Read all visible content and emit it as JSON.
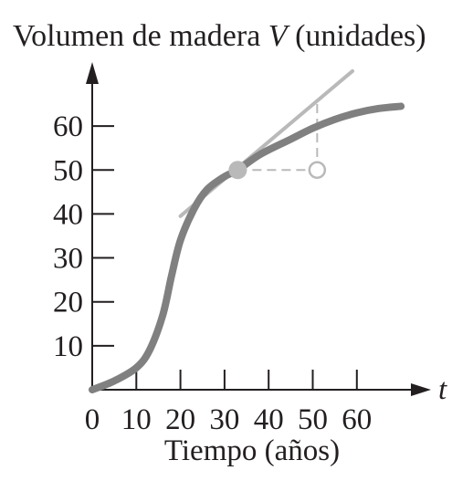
{
  "chart_data": {
    "type": "line",
    "title_parts": {
      "pre": "Volumen de madera ",
      "var": "V",
      "post": " (unidades)"
    },
    "xlabel": "Tiempo (años)",
    "x_axis_var": "t",
    "xlim": [
      0,
      75
    ],
    "ylim": [
      0,
      70
    ],
    "x_ticks": [
      0,
      10,
      20,
      30,
      40,
      50,
      60
    ],
    "y_ticks": [
      10,
      20,
      30,
      40,
      50,
      60
    ],
    "series": [
      {
        "x": [
          0,
          5,
          10,
          13,
          16,
          18,
          20,
          23,
          26,
          30,
          33,
          38,
          45,
          50,
          55,
          60,
          65,
          70
        ],
        "y": [
          0,
          2,
          5,
          9,
          17,
          26,
          34,
          41,
          45.5,
          48.5,
          50,
          53.5,
          57,
          59.5,
          61.5,
          63,
          64,
          64.5
        ]
      }
    ],
    "point": {
      "x": 33,
      "y": 50
    },
    "tangent": {
      "x0": 20,
      "y0": 39.5,
      "x1": 59,
      "y1": 72.5
    },
    "run_end": {
      "x": 51,
      "y": 50
    },
    "rise_top": {
      "x": 51,
      "y": 65
    },
    "colors": {
      "curve": "#808080",
      "tangent": "#b9b9b9",
      "point": "#b9b9b9",
      "axis": "#231f20"
    }
  }
}
